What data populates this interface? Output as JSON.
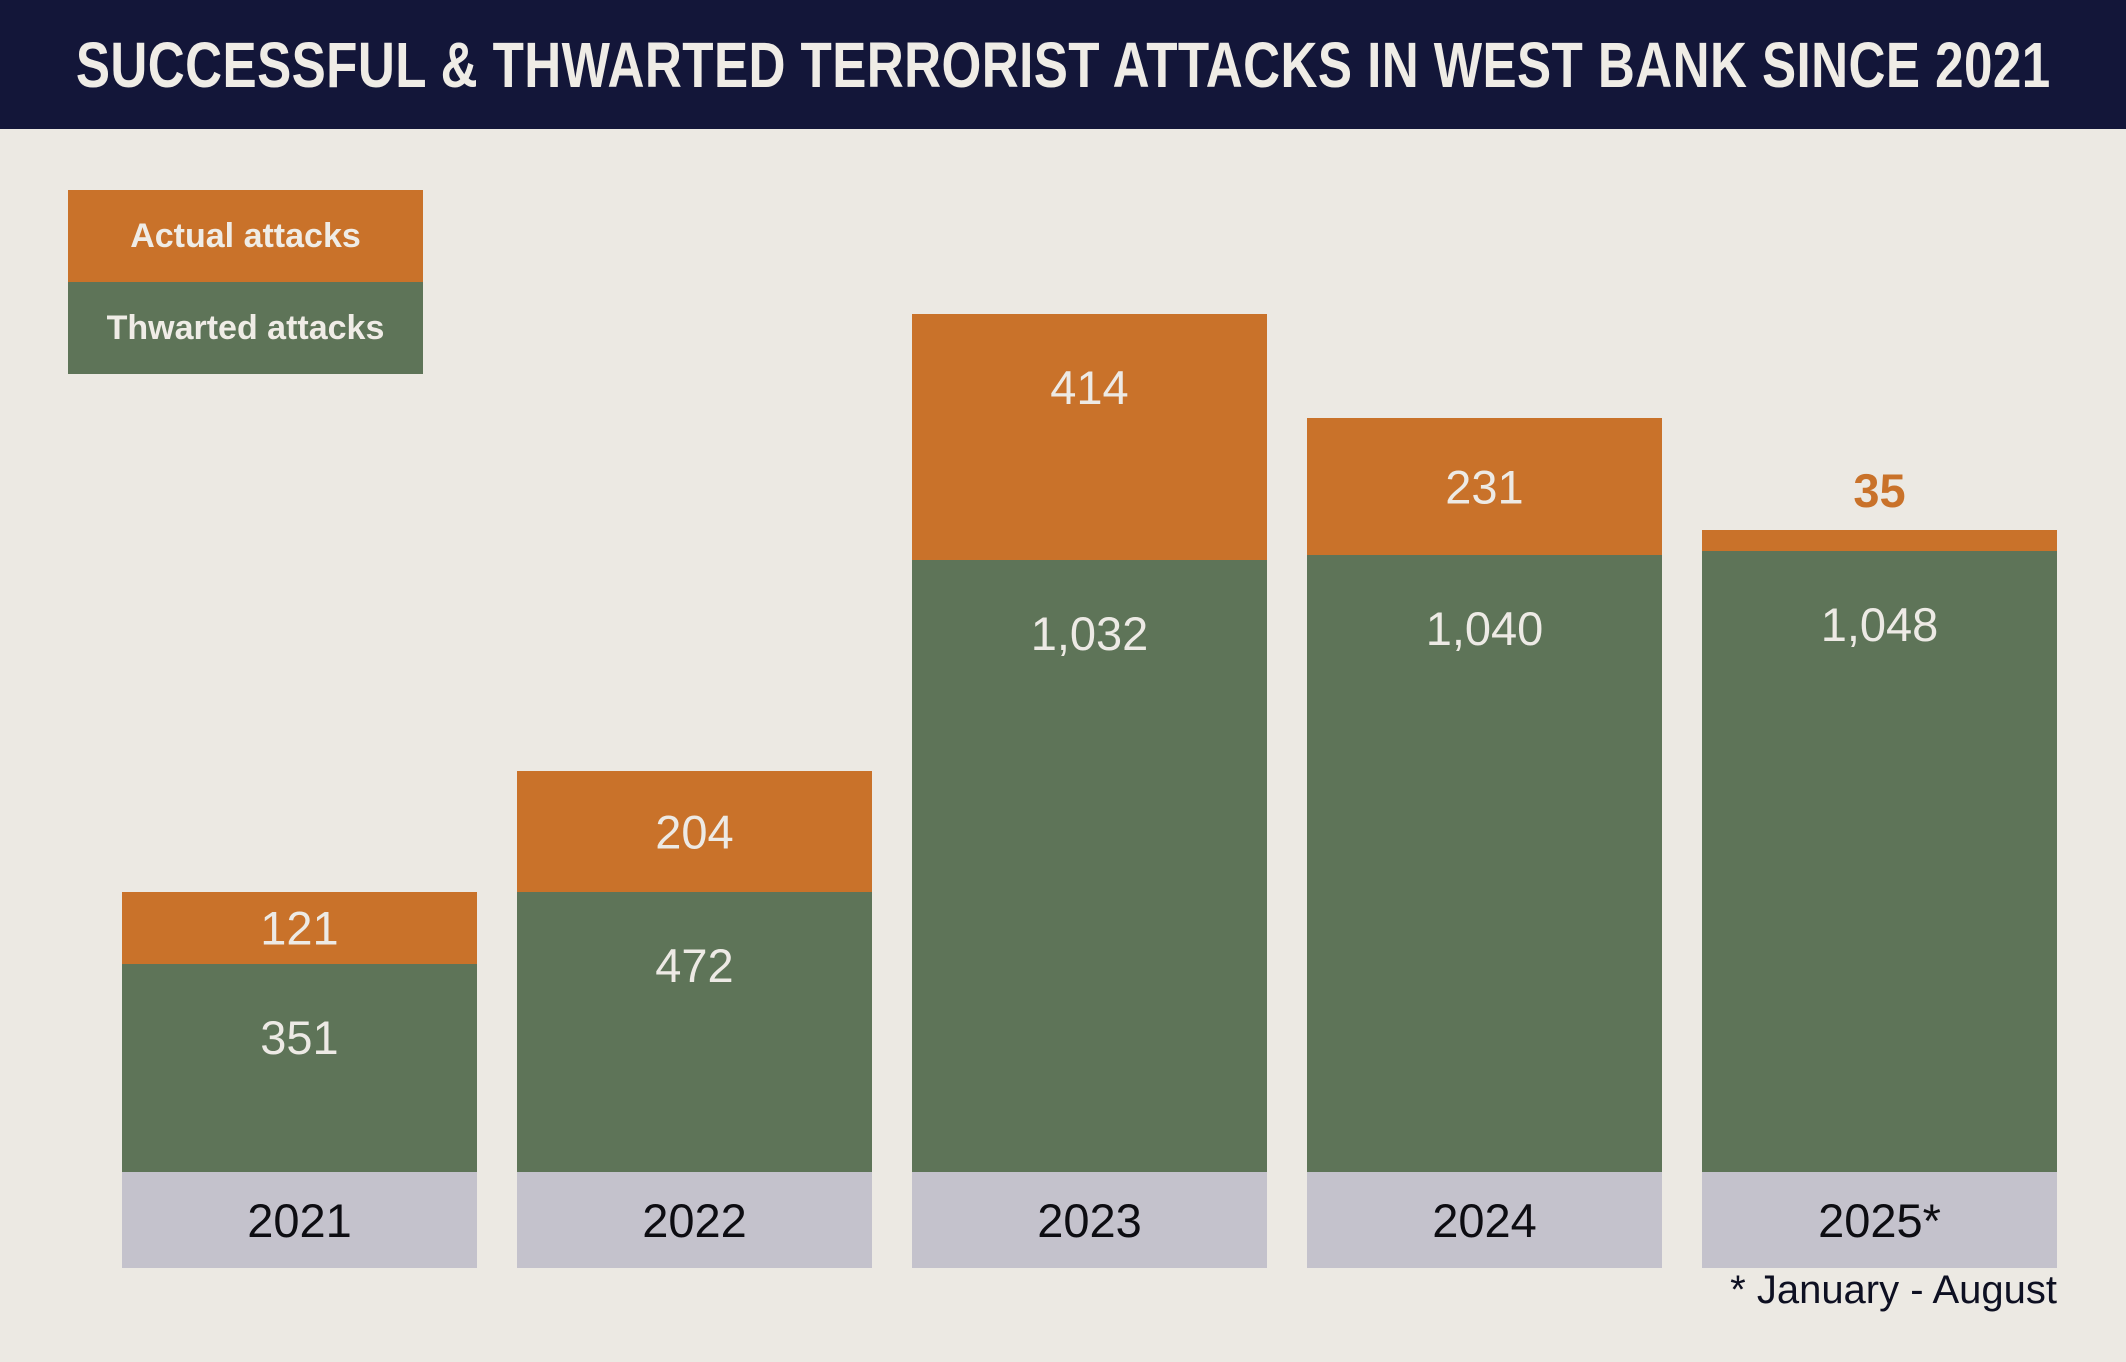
{
  "header": {
    "title": "SUCCESSFUL & THWARTED TERRORIST ATTACKS IN WEST BANK SINCE 2021"
  },
  "legend": {
    "items": [
      {
        "label": "Actual attacks",
        "color": "#C9722A"
      },
      {
        "label": "Thwarted attacks",
        "color": "#5E7458"
      }
    ]
  },
  "footnote": "* January - August",
  "colors": {
    "background": "#ECE9E3",
    "header_bg": "#131639",
    "title_text": "#EFECE6",
    "actual": "#C9722A",
    "thwarted": "#5E7458",
    "year_base": "#C4C2CC",
    "value_text": "#EDEAE5",
    "year_text": "#0D0D12",
    "footnote_text": "#0E1022"
  },
  "chart_data": {
    "type": "bar",
    "stacked": true,
    "title": "SUCCESSFUL & THWARTED TERRORIST ATTACKS IN WEST BANK SINCE 2021",
    "categories": [
      "2021",
      "2022",
      "2023",
      "2024",
      "2025*"
    ],
    "series": [
      {
        "name": "Actual attacks",
        "color": "#C9722A",
        "values": [
          121,
          204,
          414,
          231,
          35
        ]
      },
      {
        "name": "Thwarted attacks",
        "color": "#5E7458",
        "values": [
          351,
          472,
          1032,
          1040,
          1048
        ]
      }
    ],
    "totals": [
      472,
      676,
      1446,
      1271,
      1083
    ],
    "value_labels": "on",
    "legend_position": "top-left",
    "xlabel": "",
    "ylabel": "",
    "note": "* January - August"
  }
}
